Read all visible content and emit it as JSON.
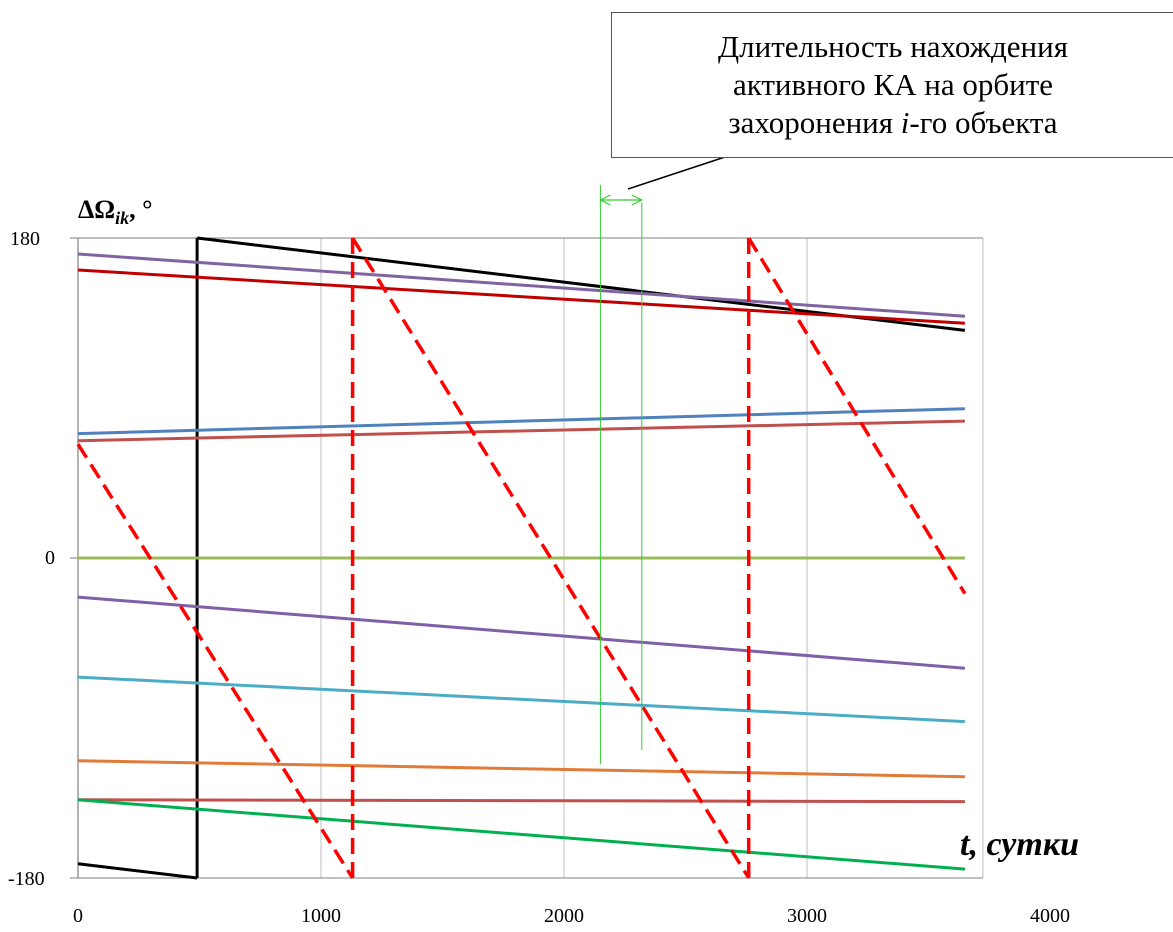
{
  "chart_data": {
    "type": "line",
    "title": "",
    "xlabel": "t, сутки",
    "ylabel": "ΔΩ",
    "ylabel_sub": "ik",
    "ylabel_suffix": ", °",
    "xlim": [
      0,
      4000
    ],
    "ylim": [
      -180,
      180
    ],
    "x_ticks": [
      "0",
      "1000",
      "2000",
      "3000",
      "4000"
    ],
    "y_ticks": [
      "180",
      "0",
      "-180"
    ],
    "grid": "vertical",
    "annotation": {
      "line1": "Длительность нахождения",
      "line2": "активного КА на орбите",
      "line3_prefix": "захоронения ",
      "line3_italic": "i",
      "line3_suffix": "-го объекта",
      "interval": [
        2150,
        2320
      ]
    },
    "series": [
      {
        "color": "#000000",
        "width": 3,
        "dash": false,
        "segments": [
          [
            [
              0,
              -172
            ],
            [
              490,
              -180
            ]
          ],
          [
            [
              490,
              -180
            ],
            [
              490,
              180
            ]
          ],
          [
            [
              490,
              180
            ],
            [
              3650,
              128
            ]
          ]
        ]
      },
      {
        "color": "#8064A2",
        "width": 3,
        "dash": false,
        "segments": [
          [
            [
              0,
              171
            ],
            [
              3650,
              136
            ]
          ]
        ]
      },
      {
        "color": "#C00000",
        "width": 3,
        "dash": false,
        "segments": [
          [
            [
              0,
              162
            ],
            [
              3650,
              132
            ]
          ]
        ]
      },
      {
        "color": "#4F81BD",
        "width": 3,
        "dash": false,
        "segments": [
          [
            [
              0,
              70
            ],
            [
              3650,
              84
            ]
          ]
        ]
      },
      {
        "color": "#C0504D",
        "width": 3,
        "dash": false,
        "segments": [
          [
            [
              0,
              66
            ],
            [
              3650,
              77
            ]
          ]
        ]
      },
      {
        "color": "#9BBB59",
        "width": 3,
        "dash": false,
        "segments": [
          [
            [
              0,
              0
            ],
            [
              3650,
              0
            ]
          ]
        ]
      },
      {
        "color": "#7F5FA8",
        "width": 3,
        "dash": false,
        "segments": [
          [
            [
              0,
              -22
            ],
            [
              3650,
              -62
            ]
          ]
        ]
      },
      {
        "color": "#4BACC6",
        "width": 3,
        "dash": false,
        "segments": [
          [
            [
              0,
              -67
            ],
            [
              3650,
              -92
            ]
          ]
        ]
      },
      {
        "color": "#E07B39",
        "width": 3,
        "dash": false,
        "segments": [
          [
            [
              0,
              -114
            ],
            [
              3650,
              -123
            ]
          ]
        ]
      },
      {
        "color": "#C0504D",
        "width": 3,
        "dash": false,
        "segments": [
          [
            [
              0,
              -136
            ],
            [
              3650,
              -137
            ]
          ]
        ]
      },
      {
        "color": "#00B050",
        "width": 3,
        "dash": false,
        "segments": [
          [
            [
              0,
              -136
            ],
            [
              3650,
              -175
            ]
          ]
        ]
      },
      {
        "color": "#FF0000",
        "width": 3.5,
        "dash": true,
        "segments": [
          [
            [
              0,
              64
            ],
            [
              1130,
              -180
            ]
          ],
          [
            [
              1130,
              -180
            ],
            [
              1130,
              180
            ]
          ],
          [
            [
              1130,
              180
            ],
            [
              2760,
              -180
            ]
          ],
          [
            [
              2760,
              -180
            ],
            [
              2760,
              180
            ]
          ],
          [
            [
              2760,
              180
            ],
            [
              3650,
              -20
            ]
          ]
        ]
      },
      {
        "color": "#33CC33",
        "width": 1,
        "dash": false,
        "segments": [
          [
            [
              2150,
              210
            ],
            [
              2150,
              -116
            ]
          ],
          [
            [
              2320,
              200
            ],
            [
              2320,
              -108
            ]
          ]
        ]
      }
    ]
  }
}
